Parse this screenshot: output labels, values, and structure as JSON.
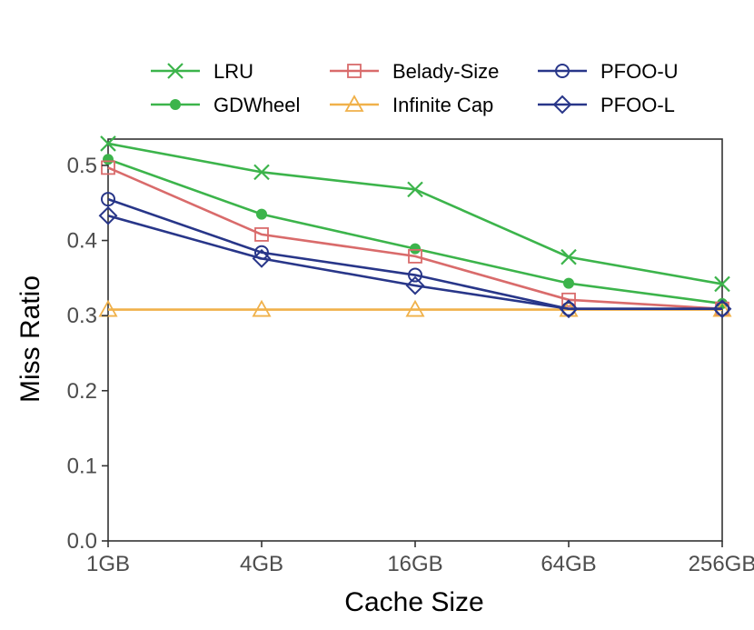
{
  "chart_data": {
    "type": "line",
    "title": "",
    "xlabel": "Cache Size",
    "ylabel": "Miss Ratio",
    "categories": [
      "1GB",
      "4GB",
      "16GB",
      "64GB",
      "256GB"
    ],
    "ylim": [
      0,
      0.535
    ],
    "yticks": [
      "0.0",
      "0.1",
      "0.2",
      "0.3",
      "0.4",
      "0.5"
    ],
    "grid": false,
    "legend_position": "top",
    "series": [
      {
        "name": "LRU",
        "color": "#3cb44b",
        "marker": "x",
        "values": [
          0.529,
          0.491,
          0.468,
          0.378,
          0.342
        ]
      },
      {
        "name": "GDWheel",
        "color": "#3cb44b",
        "marker": "filled-circle",
        "values": [
          0.508,
          0.435,
          0.389,
          0.343,
          0.316
        ]
      },
      {
        "name": "Belady-Size",
        "color": "#d96b6b",
        "marker": "square",
        "values": [
          0.497,
          0.408,
          0.379,
          0.321,
          0.309
        ]
      },
      {
        "name": "Infinite Cap",
        "color": "#f0b14a",
        "marker": "triangle",
        "values": [
          0.308,
          0.308,
          0.308,
          0.308,
          0.308
        ]
      },
      {
        "name": "PFOO-U",
        "color": "#283689",
        "marker": "circle",
        "values": [
          0.455,
          0.384,
          0.354,
          0.309,
          0.309
        ]
      },
      {
        "name": "PFOO-L",
        "color": "#283689",
        "marker": "diamond",
        "values": [
          0.433,
          0.376,
          0.34,
          0.309,
          0.309
        ]
      }
    ]
  }
}
